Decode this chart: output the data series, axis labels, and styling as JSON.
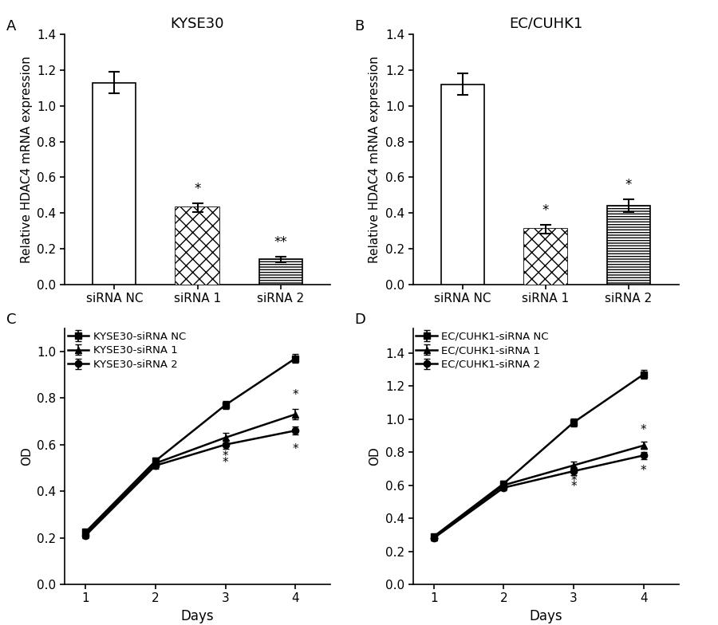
{
  "panel_A": {
    "title": "KYSE30",
    "ylabel": "Relative HDAC4 mRNA expression",
    "categories": [
      "siRNA NC",
      "siRNA 1",
      "siRNA 2"
    ],
    "values": [
      1.13,
      0.43,
      0.14
    ],
    "errors": [
      0.06,
      0.025,
      0.015
    ],
    "sig_labels": [
      "",
      "*",
      "**"
    ],
    "ylim": [
      0,
      1.4
    ],
    "yticks": [
      0.0,
      0.2,
      0.4,
      0.6,
      0.8,
      1.0,
      1.2,
      1.4
    ],
    "hatch_patterns": [
      "none",
      "checker",
      "horizontal"
    ],
    "bar_edgecolors": [
      "black",
      "black",
      "black"
    ]
  },
  "panel_B": {
    "title": "EC/CUHK1",
    "ylabel": "Relative HDAC4 mRNA expression",
    "categories": [
      "siRNA NC",
      "siRNA 1",
      "siRNA 2"
    ],
    "values": [
      1.12,
      0.31,
      0.44
    ],
    "errors": [
      0.06,
      0.025,
      0.035
    ],
    "sig_labels": [
      "",
      "*",
      "*"
    ],
    "ylim": [
      0,
      1.4
    ],
    "yticks": [
      0.0,
      0.2,
      0.4,
      0.6,
      0.8,
      1.0,
      1.2,
      1.4
    ],
    "hatch_patterns": [
      "none",
      "checker",
      "horizontal"
    ],
    "bar_edgecolors": [
      "black",
      "black",
      "black"
    ]
  },
  "panel_C": {
    "xlabel": "Days",
    "ylabel": "OD",
    "ylim": [
      0.0,
      1.1
    ],
    "yticks": [
      0.0,
      0.2,
      0.4,
      0.6,
      0.8,
      1.0
    ],
    "xlim": [
      0.7,
      4.5
    ],
    "xticks": [
      1,
      2,
      3,
      4
    ],
    "series": [
      {
        "label": "KYSE30-siRNA NC",
        "x": [
          1,
          2,
          3,
          4
        ],
        "y": [
          0.225,
          0.53,
          0.77,
          0.97
        ],
        "yerr": [
          0.012,
          0.015,
          0.018,
          0.018
        ],
        "marker": "s"
      },
      {
        "label": "KYSE30-siRNA 1",
        "x": [
          1,
          2,
          3,
          4
        ],
        "y": [
          0.215,
          0.52,
          0.63,
          0.73
        ],
        "yerr": [
          0.012,
          0.015,
          0.02,
          0.022
        ],
        "marker": "^"
      },
      {
        "label": "KYSE30-siRNA 2",
        "x": [
          1,
          2,
          3,
          4
        ],
        "y": [
          0.21,
          0.51,
          0.6,
          0.66
        ],
        "yerr": [
          0.012,
          0.015,
          0.018,
          0.018
        ],
        "marker": "o"
      }
    ],
    "sig_annotations": [
      {
        "day": 3,
        "series_idx": 1,
        "pos": "below",
        "text": "*"
      },
      {
        "day": 3,
        "series_idx": 2,
        "pos": "below",
        "text": "*"
      },
      {
        "day": 4,
        "series_idx": 1,
        "pos": "above",
        "text": "*"
      },
      {
        "day": 4,
        "series_idx": 2,
        "pos": "below",
        "text": "*"
      }
    ]
  },
  "panel_D": {
    "xlabel": "Days",
    "ylabel": "OD",
    "ylim": [
      0.0,
      1.55
    ],
    "yticks": [
      0.0,
      0.2,
      0.4,
      0.6,
      0.8,
      1.0,
      1.2,
      1.4
    ],
    "xlim": [
      0.7,
      4.5
    ],
    "xticks": [
      1,
      2,
      3,
      4
    ],
    "series": [
      {
        "label": "EC/CUHK1-siRNA NC",
        "x": [
          1,
          2,
          3,
          4
        ],
        "y": [
          0.29,
          0.61,
          0.98,
          1.27
        ],
        "yerr": [
          0.015,
          0.018,
          0.025,
          0.025
        ],
        "marker": "s"
      },
      {
        "label": "EC/CUHK1-siRNA 1",
        "x": [
          1,
          2,
          3,
          4
        ],
        "y": [
          0.285,
          0.6,
          0.72,
          0.84
        ],
        "yerr": [
          0.015,
          0.018,
          0.022,
          0.022
        ],
        "marker": "^"
      },
      {
        "label": "EC/CUHK1-siRNA 2",
        "x": [
          1,
          2,
          3,
          4
        ],
        "y": [
          0.28,
          0.585,
          0.685,
          0.78
        ],
        "yerr": [
          0.015,
          0.018,
          0.022,
          0.022
        ],
        "marker": "o"
      }
    ],
    "sig_annotations": [
      {
        "day": 3,
        "series_idx": 1,
        "pos": "below",
        "text": "*"
      },
      {
        "day": 3,
        "series_idx": 2,
        "pos": "below",
        "text": "*"
      },
      {
        "day": 4,
        "series_idx": 1,
        "pos": "above",
        "text": "*"
      },
      {
        "day": 4,
        "series_idx": 2,
        "pos": "below",
        "text": "*"
      }
    ]
  },
  "background_color": "#ffffff",
  "label_fontsize": 13,
  "tick_fontsize": 11,
  "title_fontsize": 13,
  "axis_label_fontsize": 11
}
